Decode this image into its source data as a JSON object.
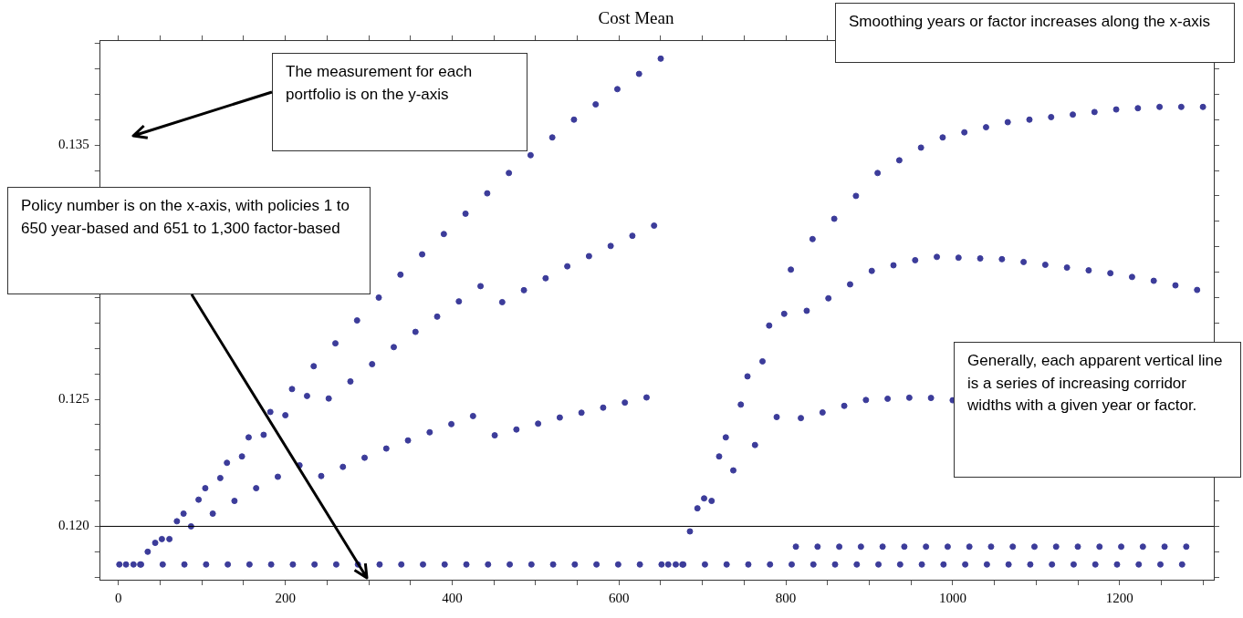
{
  "chart_data": {
    "type": "scatter",
    "title": "Cost Mean",
    "annotations": [
      "The measurement for each portfolio is on the y-axis",
      "Smoothing years or factor increases along the x-axis",
      "Policy number is on the x-axis, with policies 1 to 650 year-based and 651 to 1,300 factor-based",
      "Generally, each apparent vertical line is a series of increasing corridor widths with a given year or factor."
    ],
    "color": "#3c3c9a",
    "marker": "circle",
    "grid": false,
    "legend": false,
    "xlim": [
      -22,
      1313
    ],
    "xticks": [
      0,
      {
        "value": 50,
        "label": null
      },
      {
        "value": 100,
        "label": null
      },
      {
        "value": 150,
        "label": null
      },
      200,
      {
        "value": 250,
        "label": null
      },
      {
        "value": 300,
        "label": null
      },
      {
        "value": 350,
        "label": null
      },
      400,
      {
        "value": 450,
        "label": null
      },
      {
        "value": 500,
        "label": null
      },
      {
        "value": 550,
        "label": null
      },
      600,
      {
        "value": 650,
        "label": null
      },
      {
        "value": 700,
        "label": null
      },
      {
        "value": 750,
        "label": null
      },
      800,
      {
        "value": 850,
        "label": null
      },
      {
        "value": 900,
        "label": null
      },
      {
        "value": 950,
        "label": null
      },
      1000,
      {
        "value": 1050,
        "label": null
      },
      {
        "value": 1100,
        "label": null
      },
      {
        "value": 1150,
        "label": null
      },
      1200,
      {
        "value": 1250,
        "label": null
      },
      {
        "value": 1300,
        "label": null
      }
    ],
    "ylim": [
      0.1179,
      0.1391
    ],
    "yticks": [
      {
        "value": 0.118,
        "label": null
      },
      {
        "value": 0.119,
        "label": null
      },
      {
        "value": 0.12,
        "label": "0.120"
      },
      {
        "value": 0.121,
        "label": null
      },
      {
        "value": 0.122,
        "label": null
      },
      {
        "value": 0.123,
        "label": null
      },
      {
        "value": 0.124,
        "label": null
      },
      0.125,
      {
        "value": 0.126,
        "label": null
      },
      {
        "value": 0.127,
        "label": null
      },
      {
        "value": 0.128,
        "label": null
      },
      {
        "value": 0.129,
        "label": null
      },
      {
        "value": 0.13,
        "label": null
      },
      {
        "value": 0.131,
        "label": null
      },
      {
        "value": 0.132,
        "label": null
      },
      {
        "value": 0.133,
        "label": null
      },
      {
        "value": 0.134,
        "label": null
      },
      0.135,
      {
        "value": 0.136,
        "label": null
      },
      {
        "value": 0.137,
        "label": null
      },
      {
        "value": 0.138,
        "label": null
      },
      {
        "value": 0.139,
        "label": null
      }
    ],
    "ref_lines": [
      {
        "axis": "y",
        "value": 0.12,
        "color": "#000000"
      }
    ],
    "x": [
      1,
      9,
      18,
      26,
      27,
      35,
      44,
      52,
      53,
      61,
      70,
      78,
      79,
      87,
      96,
      104,
      105,
      113,
      122,
      130,
      131,
      139,
      148,
      156,
      157,
      165,
      174,
      182,
      183,
      191,
      200,
      208,
      209,
      217,
      226,
      234,
      235,
      243,
      252,
      260,
      261,
      269,
      278,
      286,
      287,
      295,
      304,
      312,
      313,
      321,
      330,
      338,
      339,
      347,
      356,
      364,
      365,
      373,
      382,
      390,
      391,
      399,
      408,
      416,
      417,
      425,
      434,
      442,
      443,
      451,
      460,
      468,
      469,
      477,
      486,
      494,
      495,
      503,
      512,
      520,
      521,
      529,
      538,
      546,
      547,
      555,
      564,
      572,
      573,
      581,
      590,
      598,
      599,
      607,
      616,
      624,
      625,
      633,
      642,
      650,
      651,
      659,
      668,
      676,
      677,
      685,
      694,
      702,
      703,
      711,
      720,
      728,
      729,
      737,
      746,
      754,
      755,
      763,
      772,
      780,
      781,
      789,
      798,
      806,
      807,
      812,
      818,
      825,
      832,
      833,
      838,
      844,
      851,
      858,
      859,
      864,
      870,
      877,
      884,
      885,
      890,
      896,
      903,
      910,
      911,
      916,
      922,
      929,
      936,
      937,
      942,
      948,
      955,
      962,
      963,
      968,
      974,
      981,
      988,
      989,
      994,
      1000,
      1007,
      1014,
      1015,
      1020,
      1026,
      1033,
      1040,
      1041,
      1046,
      1052,
      1059,
      1066,
      1067,
      1072,
      1078,
      1085,
      1092,
      1093,
      1098,
      1104,
      1111,
      1118,
      1119,
      1124,
      1130,
      1137,
      1144,
      1145,
      1150,
      1156,
      1163,
      1170,
      1171,
      1176,
      1182,
      1189,
      1196,
      1197,
      1202,
      1208,
      1215,
      1222,
      1223,
      1228,
      1234,
      1241,
      1248,
      1249,
      1254,
      1260,
      1267,
      1274,
      1275,
      1280,
      1286,
      1293,
      1300
    ],
    "values": [
      0.1185,
      0.1185,
      0.1185,
      0.1185,
      0.1185,
      0.119,
      0.11935,
      0.1195,
      0.1185,
      0.1195,
      0.1202,
      0.1205,
      0.1185,
      0.12,
      0.12105,
      0.1215,
      0.1185,
      0.1205,
      0.1219,
      0.1225,
      0.1185,
      0.121,
      0.12275,
      0.1235,
      0.1185,
      0.1215,
      0.1236,
      0.1245,
      0.1185,
      0.12195,
      0.12437,
      0.1254,
      0.1185,
      0.1224,
      0.12513,
      0.1263,
      0.1185,
      0.12198,
      0.12503,
      0.1272,
      0.1185,
      0.12234,
      0.1257,
      0.1281,
      0.1185,
      0.1227,
      0.12638,
      0.129,
      0.1185,
      0.12306,
      0.12705,
      0.1299,
      0.1185,
      0.12338,
      0.12765,
      0.1307,
      0.1185,
      0.1237,
      0.12825,
      0.1315,
      0.1185,
      0.12402,
      0.12885,
      0.1323,
      0.1185,
      0.12434,
      0.12945,
      0.1331,
      0.1185,
      0.12358,
      0.12882,
      0.1339,
      0.1185,
      0.12381,
      0.12929,
      0.1346,
      0.1185,
      0.12404,
      0.12976,
      0.1353,
      0.1185,
      0.12428,
      0.13023,
      0.136,
      0.1185,
      0.12447,
      0.13063,
      0.1366,
      0.1185,
      0.12467,
      0.13103,
      0.1372,
      0.1185,
      0.12487,
      0.13143,
      0.1378,
      0.1185,
      0.12507,
      0.13183,
      0.1384,
      0.1185,
      0.1185,
      0.1185,
      0.1185,
      0.1185,
      0.1198,
      0.12071,
      0.1211,
      0.1185,
      0.121,
      0.12275,
      0.1235,
      0.1185,
      0.1222,
      0.12479,
      0.1259,
      0.1185,
      0.1232,
      0.12649,
      0.1279,
      0.1185,
      0.1243,
      0.12836,
      0.1301,
      0.1185,
      0.1192,
      0.12426,
      0.12848,
      0.1313,
      0.1185,
      0.1192,
      0.12448,
      0.12897,
      0.1321,
      0.1185,
      0.1192,
      0.12474,
      0.12952,
      0.133,
      0.1185,
      0.1192,
      0.12497,
      0.13005,
      0.1339,
      0.1185,
      0.1192,
      0.12502,
      0.13027,
      0.1344,
      0.1185,
      0.1192,
      0.12506,
      0.13047,
      0.1349,
      0.1185,
      0.1192,
      0.12505,
      0.1306,
      0.1353,
      0.1185,
      0.1192,
      0.12496,
      0.13057,
      0.1355,
      0.1185,
      0.1192,
      null,
      0.13054,
      0.1357,
      0.1185,
      0.1192,
      null,
      0.13051,
      0.1359,
      0.1185,
      0.1192,
      null,
      0.1304,
      0.136,
      0.1185,
      0.1192,
      null,
      0.13029,
      0.1361,
      0.1185,
      0.1192,
      null,
      0.13018,
      0.1362,
      0.1185,
      0.1192,
      null,
      0.13007,
      0.1363,
      0.1185,
      0.1192,
      null,
      0.12996,
      0.1364,
      0.1185,
      0.1192,
      null,
      0.12981,
      0.13645,
      0.1185,
      0.1192,
      null,
      0.12966,
      0.1365,
      0.1185,
      0.1192,
      null,
      0.12948,
      0.1365,
      0.1185,
      0.1192,
      null,
      0.1293,
      0.1365
    ]
  }
}
